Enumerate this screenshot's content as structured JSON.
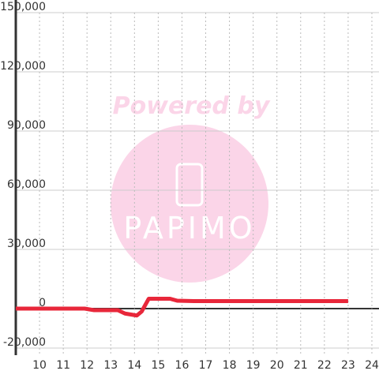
{
  "chart_data": {
    "type": "line",
    "watermark": {
      "top": "Powered by",
      "brand": "PAPIMO"
    },
    "x": [
      9,
      10,
      11,
      11.9,
      12.3,
      13.3,
      13.6,
      14.1,
      14.3,
      14.6,
      15.5,
      15.8,
      16.5,
      23
    ],
    "series": [
      {
        "color": "#e8273a",
        "values": [
          0,
          0,
          0,
          0,
          -800,
          -800,
          -2500,
          -3500,
          -1500,
          5000,
          5000,
          4000,
          3800,
          3800
        ]
      }
    ],
    "xlim": [
      9,
      24.3
    ],
    "ylim": [
      -20000,
      150000
    ],
    "xticks": [
      10,
      11,
      12,
      13,
      14,
      15,
      16,
      17,
      18,
      19,
      20,
      21,
      22,
      23,
      24
    ],
    "yticks": [
      {
        "value": -20000,
        "label": "-20,000"
      },
      0,
      {
        "value": 30000,
        "label": "30,000"
      },
      {
        "value": 60000,
        "label": "60,000"
      },
      {
        "value": 90000,
        "label": "90,000"
      },
      {
        "value": 120000,
        "label": "120,000"
      },
      {
        "value": 150000,
        "label": "150,000"
      }
    ],
    "grid": true
  }
}
